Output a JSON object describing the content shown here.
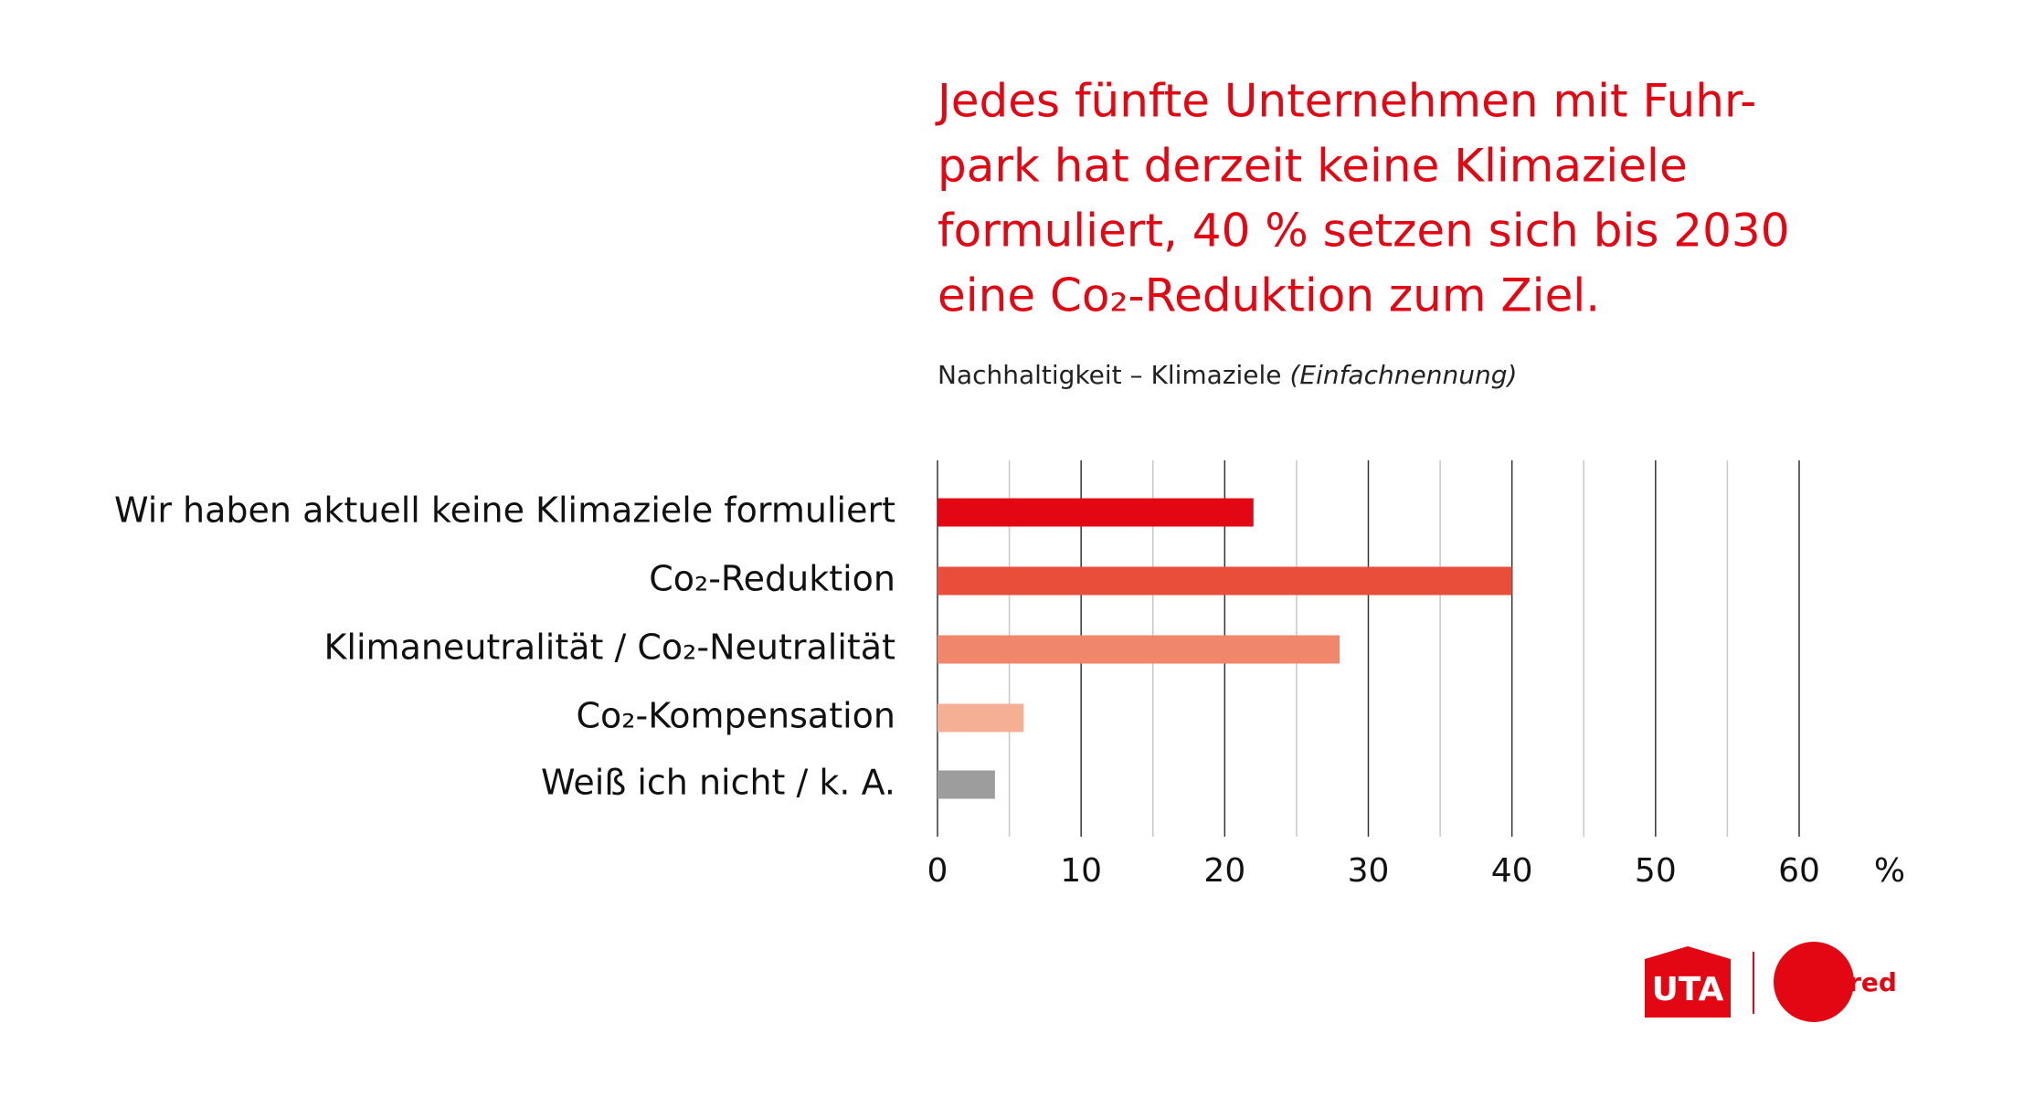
{
  "chart_data": {
    "type": "hbar",
    "title": [
      "Jedes fünfte Unternehmen mit Fuhr-",
      "park hat derzeit keine Klimaziele",
      "formuliert, 40 % setzen sich bis 2030",
      "eine Co₂-Reduktion zum Ziel."
    ],
    "subtitle": "Nachhaltigkeit – Klimaziele",
    "subtitle_note": "(Einfachnennung)",
    "categories": [
      "Wir haben aktuell keine Klimaziele formuliert",
      "Co₂-Reduktion",
      "Klimaneutralität / Co₂-Neutralität",
      "Co₂-Kompensation",
      "Weiß ich nicht / k. A."
    ],
    "values": [
      22,
      40,
      28,
      6,
      4
    ],
    "colors": [
      "#e30613",
      "#e94e3a",
      "#f0876a",
      "#f5af94",
      "#9d9d9d"
    ],
    "xlim": [
      0,
      60
    ],
    "xticks": [
      0,
      10,
      20,
      30,
      40,
      50,
      60
    ],
    "minor_xticks": [
      5,
      15,
      25,
      35,
      45,
      55
    ],
    "x_unit": "%",
    "grid": true
  },
  "logos": [
    "UTA",
    "Edenred"
  ]
}
